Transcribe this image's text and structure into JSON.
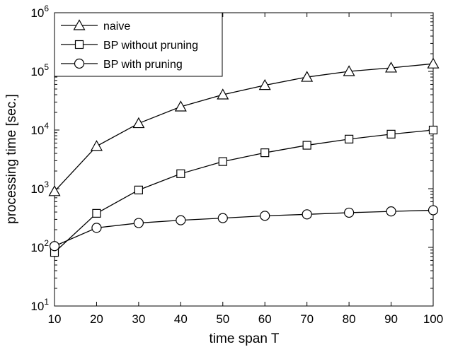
{
  "chart_data": {
    "type": "line",
    "xlabel": "time span T",
    "ylabel": "processing time [sec.]",
    "x": [
      10,
      20,
      30,
      40,
      50,
      60,
      70,
      80,
      90,
      100
    ],
    "xlim": [
      10,
      100
    ],
    "ylim": [
      10,
      1000000
    ],
    "yscale": "log",
    "x_ticks": [
      "10",
      "20",
      "30",
      "40",
      "50",
      "60",
      "70",
      "80",
      "90",
      "100"
    ],
    "y_ticks": [
      {
        "base": "10",
        "exp": "1",
        "value": 10
      },
      {
        "base": "10",
        "exp": "2",
        "value": 100
      },
      {
        "base": "10",
        "exp": "3",
        "value": 1000
      },
      {
        "base": "10",
        "exp": "4",
        "value": 10000
      },
      {
        "base": "10",
        "exp": "5",
        "value": 100000
      },
      {
        "base": "10",
        "exp": "6",
        "value": 1000000
      }
    ],
    "grid": false,
    "legend_position": "top-left",
    "series": [
      {
        "name": "naive",
        "marker": "triangle",
        "color": "#000000",
        "values": [
          900,
          5300,
          13000,
          25000,
          40000,
          58000,
          80000,
          100000,
          115000,
          135000
        ]
      },
      {
        "name": "BP without pruning",
        "marker": "square",
        "color": "#000000",
        "values": [
          82,
          380,
          950,
          1800,
          2900,
          4100,
          5500,
          7000,
          8500,
          10000
        ]
      },
      {
        "name": "BP with pruning",
        "marker": "circle",
        "color": "#000000",
        "values": [
          105,
          215,
          260,
          290,
          315,
          345,
          365,
          390,
          410,
          430
        ]
      }
    ]
  }
}
